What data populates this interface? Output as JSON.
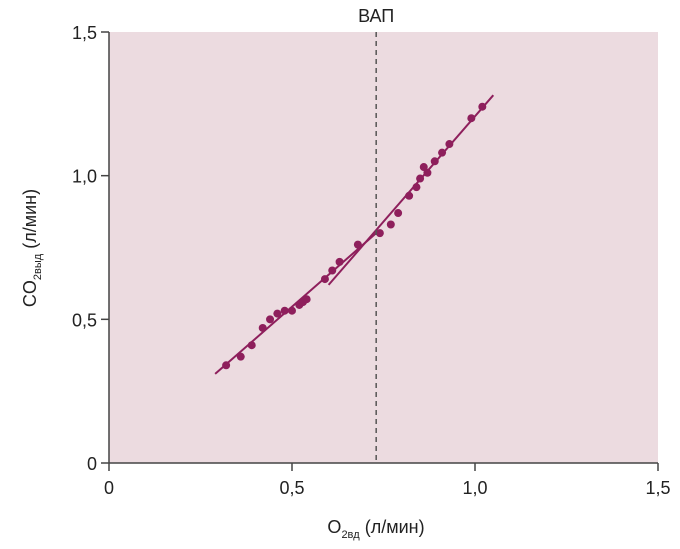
{
  "chart_data": {
    "type": "scatter",
    "title": "",
    "annotation": "ВАП",
    "xlabel": {
      "main": "O",
      "sub": "2вд",
      "unit": "(л/мин)"
    },
    "ylabel": {
      "main": "CO",
      "sub": "2выд",
      "unit": "(л/мин)"
    },
    "xlim": [
      0,
      1.5
    ],
    "ylim": [
      0,
      1.5
    ],
    "xticks": [
      0,
      0.5,
      1.0,
      1.5
    ],
    "yticks": [
      0,
      0.5,
      1.0,
      1.5
    ],
    "xtick_labels": [
      "0",
      "0,5",
      "1,0",
      "1,5"
    ],
    "ytick_labels": [
      "0",
      "0,5",
      "1,0",
      "1,5"
    ],
    "threshold_x": 0.73,
    "colors": {
      "plot_bg": "#ecdbe0",
      "series": "#8e1f5c",
      "axis": "#444444",
      "threshold": "#555555"
    },
    "series": [
      {
        "points": [
          [
            0.32,
            0.34
          ],
          [
            0.36,
            0.37
          ],
          [
            0.39,
            0.41
          ],
          [
            0.42,
            0.47
          ],
          [
            0.44,
            0.5
          ],
          [
            0.46,
            0.52
          ],
          [
            0.48,
            0.53
          ],
          [
            0.5,
            0.53
          ],
          [
            0.52,
            0.55
          ],
          [
            0.53,
            0.56
          ],
          [
            0.54,
            0.57
          ],
          [
            0.59,
            0.64
          ],
          [
            0.61,
            0.67
          ],
          [
            0.63,
            0.7
          ],
          [
            0.68,
            0.76
          ],
          [
            0.74,
            0.8
          ],
          [
            0.77,
            0.83
          ],
          [
            0.79,
            0.87
          ],
          [
            0.82,
            0.93
          ],
          [
            0.84,
            0.96
          ],
          [
            0.85,
            0.99
          ],
          [
            0.86,
            1.03
          ],
          [
            0.87,
            1.01
          ],
          [
            0.89,
            1.05
          ],
          [
            0.91,
            1.08
          ],
          [
            0.93,
            1.11
          ],
          [
            0.99,
            1.2
          ],
          [
            1.02,
            1.24
          ]
        ]
      }
    ],
    "fit_lines": [
      {
        "x": [
          0.29,
          0.73
        ],
        "y": [
          0.31,
          0.8
        ]
      },
      {
        "x": [
          0.6,
          1.05
        ],
        "y": [
          0.62,
          1.28
        ]
      }
    ]
  }
}
